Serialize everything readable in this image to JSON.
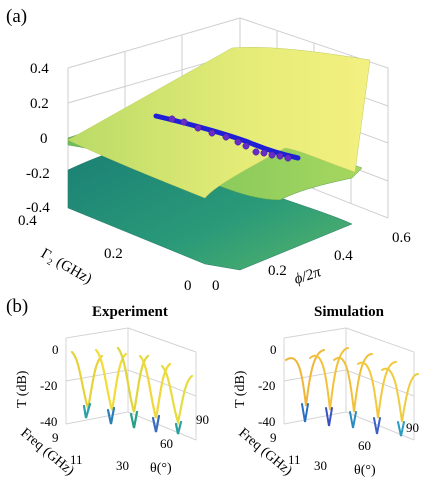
{
  "panel_a": {
    "label": "(a)",
    "z_ticks": [
      "0.4",
      "0.2",
      "0",
      "-0.2",
      "-0.4"
    ],
    "gamma_ticks": [
      "0.4",
      "0.2",
      "0"
    ],
    "phi_ticks": [
      "0",
      "0.2",
      "0.4",
      "0.6"
    ],
    "gamma_label": "Γ₂ (GHz)",
    "phi_label": "ϕ/2π"
  },
  "panel_b": {
    "label": "(b)",
    "experiment": {
      "title": "Experiment",
      "t_ticks": [
        "0",
        "-20",
        "-40"
      ],
      "t_label": "T (dB)",
      "freq_ticks": [
        "9",
        "11"
      ],
      "freq_label": "Freq (GHz)",
      "theta_ticks": [
        "30",
        "60",
        "90"
      ],
      "theta_label": "θ(°)"
    },
    "simulation": {
      "title": "Simulation",
      "t_ticks": [
        "0",
        "-20",
        "-40"
      ],
      "t_label": "T (dB)",
      "freq_ticks": [
        "9",
        "11"
      ],
      "freq_label": "Freq (GHz)",
      "theta_ticks": [
        "30",
        "60",
        "90"
      ],
      "theta_label": "θ(°)"
    }
  },
  "colors": {
    "surface_top": "#e8ee7a",
    "surface_mid": "#8cc95e",
    "surface_low": "#1f8c78",
    "curve": "#1f1fd6",
    "markers": "#6a2cc8"
  }
}
